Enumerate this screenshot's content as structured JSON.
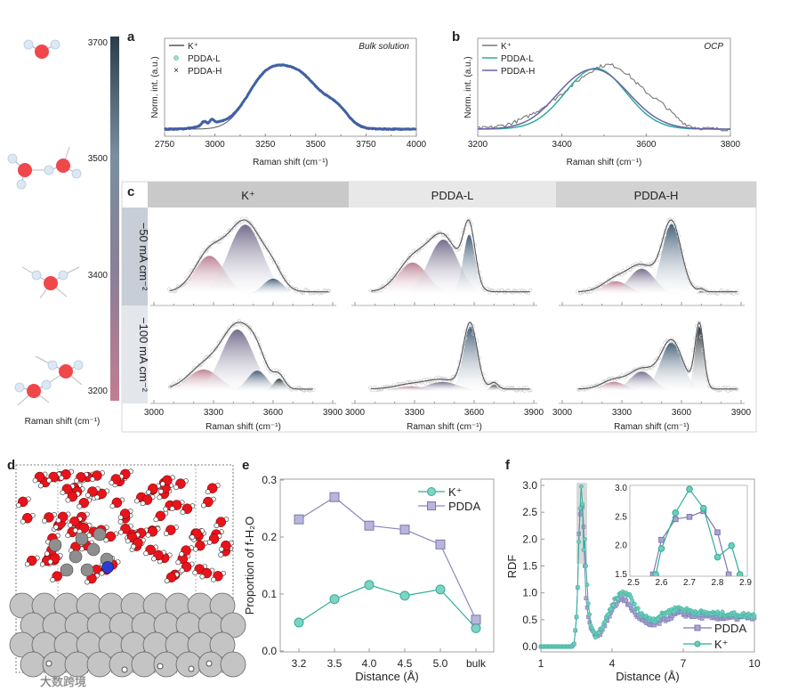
{
  "colorbar": {
    "label": "Raman shift (cm⁻¹)",
    "ticks": [
      "3700",
      "3500",
      "3400",
      "3200"
    ],
    "colors": [
      "#2b3d4c",
      "#7a8fa0",
      "#8a7f96",
      "#c27d92"
    ]
  },
  "panel_d": {
    "label": "d"
  },
  "watermark": "大数跨境",
  "colors": {
    "pink": "#b87a8d",
    "purple": "#6d6586",
    "blue": "#3c5873",
    "dark": "#1c262e",
    "teal": "#2fae98",
    "lavender": "#8a86b8",
    "gray": "#666666",
    "navy": "#4a5aa8"
  },
  "chart_data": [
    {
      "panel": "a",
      "type": "line",
      "title": "Bulk solution",
      "xlabel": "Raman shift (cm⁻¹)",
      "ylabel": "Norm. int. (a.u.)",
      "xlim": [
        2750,
        4000
      ],
      "xticks": [
        "2750",
        "3000",
        "3250",
        "3500",
        "3750",
        "4000"
      ],
      "legend": [
        "K⁺",
        "PDDA-L",
        "PDDA-H"
      ],
      "series": [
        {
          "name": "K⁺",
          "components": [
            [
              3240,
              0.72,
              95
            ],
            [
              3420,
              0.9,
              115
            ],
            [
              3610,
              0.22,
              55
            ]
          ]
        },
        {
          "name": "PDDA-L",
          "components": [
            [
              3240,
              0.72,
              95
            ],
            [
              3420,
              0.9,
              115
            ],
            [
              3610,
              0.22,
              55
            ],
            [
              2945,
              0.07,
              12
            ],
            [
              2985,
              0.08,
              10
            ],
            [
              3000,
              0.08,
              70
            ]
          ]
        },
        {
          "name": "PDDA-H",
          "components": [
            [
              3240,
              0.72,
              95
            ],
            [
              3420,
              0.9,
              115
            ],
            [
              3610,
              0.22,
              55
            ],
            [
              2945,
              0.07,
              12
            ],
            [
              2985,
              0.08,
              10
            ],
            [
              3000,
              0.08,
              70
            ]
          ]
        }
      ]
    },
    {
      "panel": "b",
      "type": "line",
      "title": "OCP",
      "xlabel": "Raman shift (cm⁻¹)",
      "ylabel": "Norm. int. (a.u.)",
      "xlim": [
        3200,
        3800
      ],
      "xticks": [
        "3200",
        "3400",
        "3600",
        "3800"
      ],
      "legend": [
        "K⁺",
        "PDDA-L",
        "PDDA-H"
      ],
      "series": [
        {
          "name": "K⁺",
          "components": [
            [
              3530,
              0.85,
              70
            ],
            [
              3420,
              0.45,
              80
            ],
            [
              3640,
              0.15,
              30
            ]
          ]
        },
        {
          "name": "PDDA-L",
          "components": [
            [
              3480,
              1.0,
              72
            ]
          ]
        },
        {
          "name": "PDDA-H",
          "components": [
            [
              3478,
              0.98,
              80
            ],
            [
              3400,
              0.05,
              40
            ]
          ]
        }
      ]
    },
    {
      "panel": "c",
      "type": "area",
      "columns": [
        "K⁺",
        "PDDA-L",
        "PDDA-H"
      ],
      "rows": [
        "−50 mA cm⁻²",
        "−100 mA cm⁻²"
      ],
      "xlim": [
        3000,
        3900
      ],
      "xticks": [
        "3000",
        "3300",
        "3600",
        "3900"
      ],
      "xlabel": "Raman shift (cm⁻¹)",
      "component_colors": [
        "pink",
        "purple",
        "blue",
        "dark"
      ],
      "fits": [
        [
          [
            [
              3280,
              0.55,
              75,
              "pink"
            ],
            [
              3460,
              1.0,
              85,
              "purple"
            ],
            [
              3600,
              0.22,
              50,
              "blue"
            ]
          ],
          [
            [
              3290,
              0.45,
              75,
              "pink"
            ],
            [
              3445,
              0.78,
              75,
              "purple"
            ],
            [
              3575,
              0.85,
              30,
              "blue"
            ]
          ],
          [
            [
              3270,
              0.18,
              65,
              "pink"
            ],
            [
              3400,
              0.36,
              65,
              "purple"
            ],
            [
              3550,
              1.0,
              48,
              "blue"
            ],
            [
              3700,
              0.04,
              15,
              "dark"
            ]
          ]
        ],
        [
          [
            [
              3250,
              0.35,
              80,
              "pink"
            ],
            [
              3420,
              1.0,
              80,
              "purple"
            ],
            [
              3520,
              0.33,
              50,
              "blue"
            ],
            [
              3630,
              0.2,
              28,
              "dark"
            ]
          ],
          [
            [
              3280,
              0.07,
              80,
              "pink"
            ],
            [
              3440,
              0.14,
              80,
              "purple"
            ],
            [
              3580,
              1.0,
              35,
              "blue"
            ],
            [
              3700,
              0.1,
              20,
              "dark"
            ]
          ],
          [
            [
              3260,
              0.14,
              60,
              "pink"
            ],
            [
              3400,
              0.3,
              60,
              "purple"
            ],
            [
              3550,
              0.75,
              55,
              "blue"
            ],
            [
              3690,
              1.0,
              22,
              "dark"
            ]
          ]
        ]
      ]
    },
    {
      "panel": "e",
      "type": "line",
      "xlabel": "Distance (Å)",
      "ylabel": "Proportion of f-H₂O",
      "categories": [
        "3.2",
        "3.5",
        "4.0",
        "4.5",
        "5.0",
        "bulk"
      ],
      "ylim": [
        0,
        0.3
      ],
      "yticks": [
        "0.0",
        "0.1",
        "0.2",
        "0.3"
      ],
      "series": [
        {
          "name": "K⁺",
          "values": [
            0.05,
            0.091,
            0.116,
            0.097,
            0.108,
            0.04
          ]
        },
        {
          "name": "PDDA",
          "values": [
            0.231,
            0.27,
            0.22,
            0.213,
            0.187,
            0.055
          ]
        }
      ],
      "legend_position": "top-right"
    },
    {
      "panel": "f",
      "type": "line",
      "xlabel": "Distance (Å)",
      "ylabel": "RDF",
      "xlim": [
        1,
        10
      ],
      "ylim": [
        0,
        3.0
      ],
      "xticks": [
        "1",
        "4",
        "7",
        "10"
      ],
      "yticks": [
        "0.0",
        "0.5",
        "1.0",
        "1.5",
        "2.0",
        "2.5",
        "3.0"
      ],
      "series": [
        {
          "name": "PDDA",
          "points": [
            [
              1,
              0
            ],
            [
              2.3,
              0
            ],
            [
              2.4,
              0.05
            ],
            [
              2.5,
              0.55
            ],
            [
              2.55,
              1.1
            ],
            [
              2.6,
              2.1
            ],
            [
              2.65,
              2.46
            ],
            [
              2.7,
              2.5
            ],
            [
              2.75,
              2.6
            ],
            [
              2.8,
              2.23
            ],
            [
              2.85,
              1.5
            ],
            [
              2.9,
              0.9
            ],
            [
              3.0,
              0.55
            ],
            [
              3.1,
              0.35
            ],
            [
              3.3,
              0.22
            ],
            [
              3.5,
              0.25
            ],
            [
              3.8,
              0.5
            ],
            [
              4.1,
              0.75
            ],
            [
              4.4,
              0.92
            ],
            [
              4.7,
              0.78
            ],
            [
              5.0,
              0.6
            ],
            [
              5.5,
              0.4
            ],
            [
              5.8,
              0.4
            ],
            [
              6.2,
              0.5
            ],
            [
              6.8,
              0.62
            ],
            [
              7.3,
              0.58
            ],
            [
              8,
              0.55
            ],
            [
              9,
              0.53
            ],
            [
              10,
              0.55
            ]
          ]
        },
        {
          "name": "K⁺",
          "points": [
            [
              1,
              0
            ],
            [
              2.3,
              0
            ],
            [
              2.4,
              0.05
            ],
            [
              2.5,
              0.55
            ],
            [
              2.55,
              1.1
            ],
            [
              2.6,
              1.95
            ],
            [
              2.65,
              2.57
            ],
            [
              2.7,
              2.98
            ],
            [
              2.75,
              2.65
            ],
            [
              2.8,
              1.8
            ],
            [
              2.85,
              2.0
            ],
            [
              2.9,
              1.5
            ],
            [
              3.0,
              0.8
            ],
            [
              3.1,
              0.4
            ],
            [
              3.3,
              0.18
            ],
            [
              3.5,
              0.3
            ],
            [
              3.8,
              0.55
            ],
            [
              4.1,
              0.85
            ],
            [
              4.4,
              1.0
            ],
            [
              4.7,
              0.98
            ],
            [
              5.0,
              0.72
            ],
            [
              5.4,
              0.55
            ],
            [
              5.8,
              0.5
            ],
            [
              6.2,
              0.62
            ],
            [
              6.8,
              0.72
            ],
            [
              7.3,
              0.66
            ],
            [
              8,
              0.62
            ],
            [
              9,
              0.6
            ],
            [
              10,
              0.58
            ]
          ]
        }
      ],
      "inset": {
        "xlim": [
          2.5,
          2.9
        ],
        "ylim": [
          1.5,
          3.0
        ],
        "xticks": [
          "2.5",
          "2.6",
          "2.7",
          "2.8",
          "2.9"
        ],
        "yticks": [
          "1.5",
          "2.0",
          "2.5",
          "3.0"
        ],
        "series": [
          {
            "name": "PDDA",
            "points": [
              [
                2.57,
                1.5
              ],
              [
                2.6,
                2.1
              ],
              [
                2.65,
                2.46
              ],
              [
                2.7,
                2.5
              ],
              [
                2.75,
                2.6
              ],
              [
                2.8,
                2.23
              ],
              [
                2.84,
                1.5
              ]
            ]
          },
          {
            "name": "K⁺",
            "points": [
              [
                2.58,
                1.5
              ],
              [
                2.6,
                1.95
              ],
              [
                2.65,
                2.57
              ],
              [
                2.7,
                2.98
              ],
              [
                2.75,
                2.65
              ],
              [
                2.8,
                1.8
              ],
              [
                2.85,
                2.0
              ],
              [
                2.88,
                1.5
              ]
            ]
          }
        ]
      },
      "legend_position": "bottom-right"
    }
  ]
}
